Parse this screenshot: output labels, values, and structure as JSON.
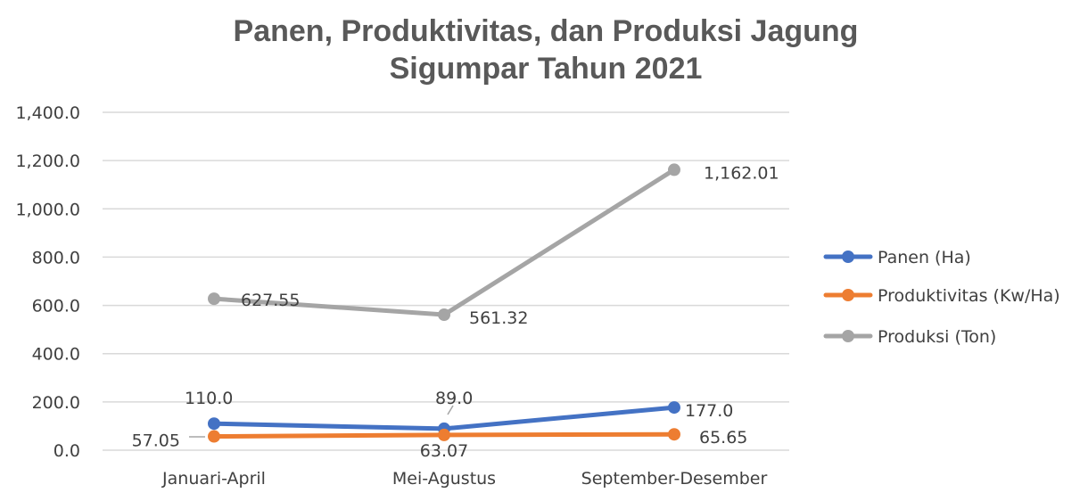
{
  "chart_data": {
    "type": "line",
    "title": [
      "Panen, Produktivitas, dan Produksi Jagung",
      "Sigumpar Tahun 2021"
    ],
    "categories": [
      "Januari-April",
      "Mei-Agustus",
      "September-Desember"
    ],
    "ylim": [
      0,
      1400
    ],
    "yticks": [
      "0.0",
      "200.0",
      "400.0",
      "600.0",
      "800.0",
      "1,000.0",
      "1,200.0",
      "1,400.0"
    ],
    "grid": true,
    "legend_position": "right",
    "series": [
      {
        "name": "Panen (Ha)",
        "color": "#4472c4",
        "values": [
          110.0,
          89.0,
          177.0
        ],
        "labels": [
          "110.0",
          "89.0",
          "177.0"
        ]
      },
      {
        "name": "Produktivitas (Kw/Ha)",
        "color": "#ed7d31",
        "values": [
          57.05,
          63.07,
          65.65
        ],
        "labels": [
          "57.05",
          "63.07",
          "65.65"
        ]
      },
      {
        "name": "Produksi (Ton)",
        "color": "#a5a5a5",
        "values": [
          627.55,
          561.32,
          1162.01
        ],
        "labels": [
          "627.55",
          "561.32",
          "1,162.01"
        ]
      }
    ]
  }
}
